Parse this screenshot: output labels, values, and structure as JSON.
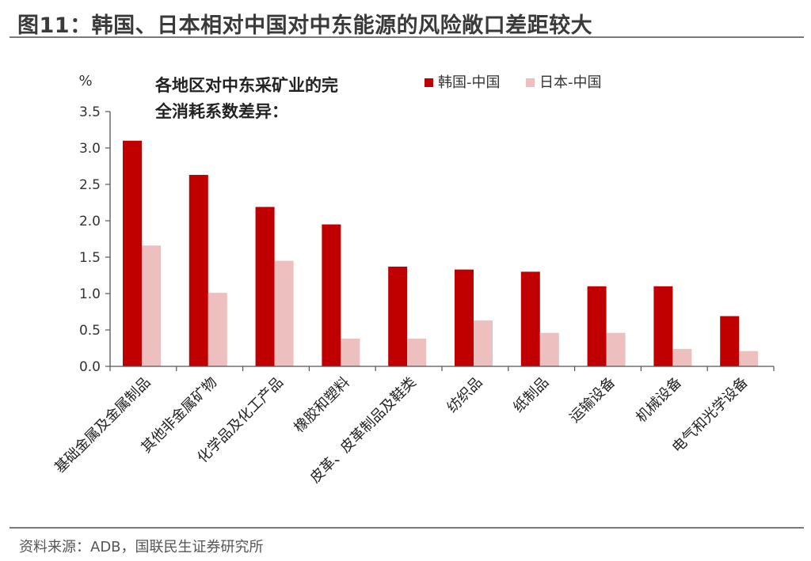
{
  "page": {
    "title": "图11：韩国、日本相对中国对中东能源的风险敞口差距较大",
    "source": "资料来源：ADB，国联民生证券研究所"
  },
  "colors": {
    "korea": "#C00000",
    "japan": "#EEBFBF",
    "axis": "#555555",
    "text": "#222222"
  },
  "chart_data": {
    "type": "bar",
    "title": "各地区对中东采矿业的完全消耗系数差异：",
    "title_lines": [
      "各地区对中东采矿业的完",
      "全消耗系数差异："
    ],
    "ylabel": "%",
    "xlabel": "",
    "ylim": [
      0,
      3.5
    ],
    "yticks": [
      "0.0",
      "0.5",
      "1.0",
      "1.5",
      "2.0",
      "2.5",
      "3.0",
      "3.5"
    ],
    "grid": false,
    "legend_position": "top-right",
    "categories": [
      "基础金属及金属制品",
      "其他非金属矿物",
      "化学品及化工产品",
      "橡胶和塑料",
      "皮革、皮革制品及鞋类",
      "纺织品",
      "纸制品",
      "运输设备",
      "机械设备",
      "电气和光学设备"
    ],
    "series": [
      {
        "name": "韩国-中国",
        "color": "#C00000",
        "values": [
          3.1,
          2.63,
          2.19,
          1.95,
          1.37,
          1.33,
          1.3,
          1.1,
          1.1,
          0.69
        ]
      },
      {
        "name": "日本-中国",
        "color": "#EEBFBF",
        "values": [
          1.66,
          1.01,
          1.45,
          0.38,
          0.38,
          0.63,
          0.46,
          0.46,
          0.24,
          0.21
        ]
      }
    ]
  }
}
